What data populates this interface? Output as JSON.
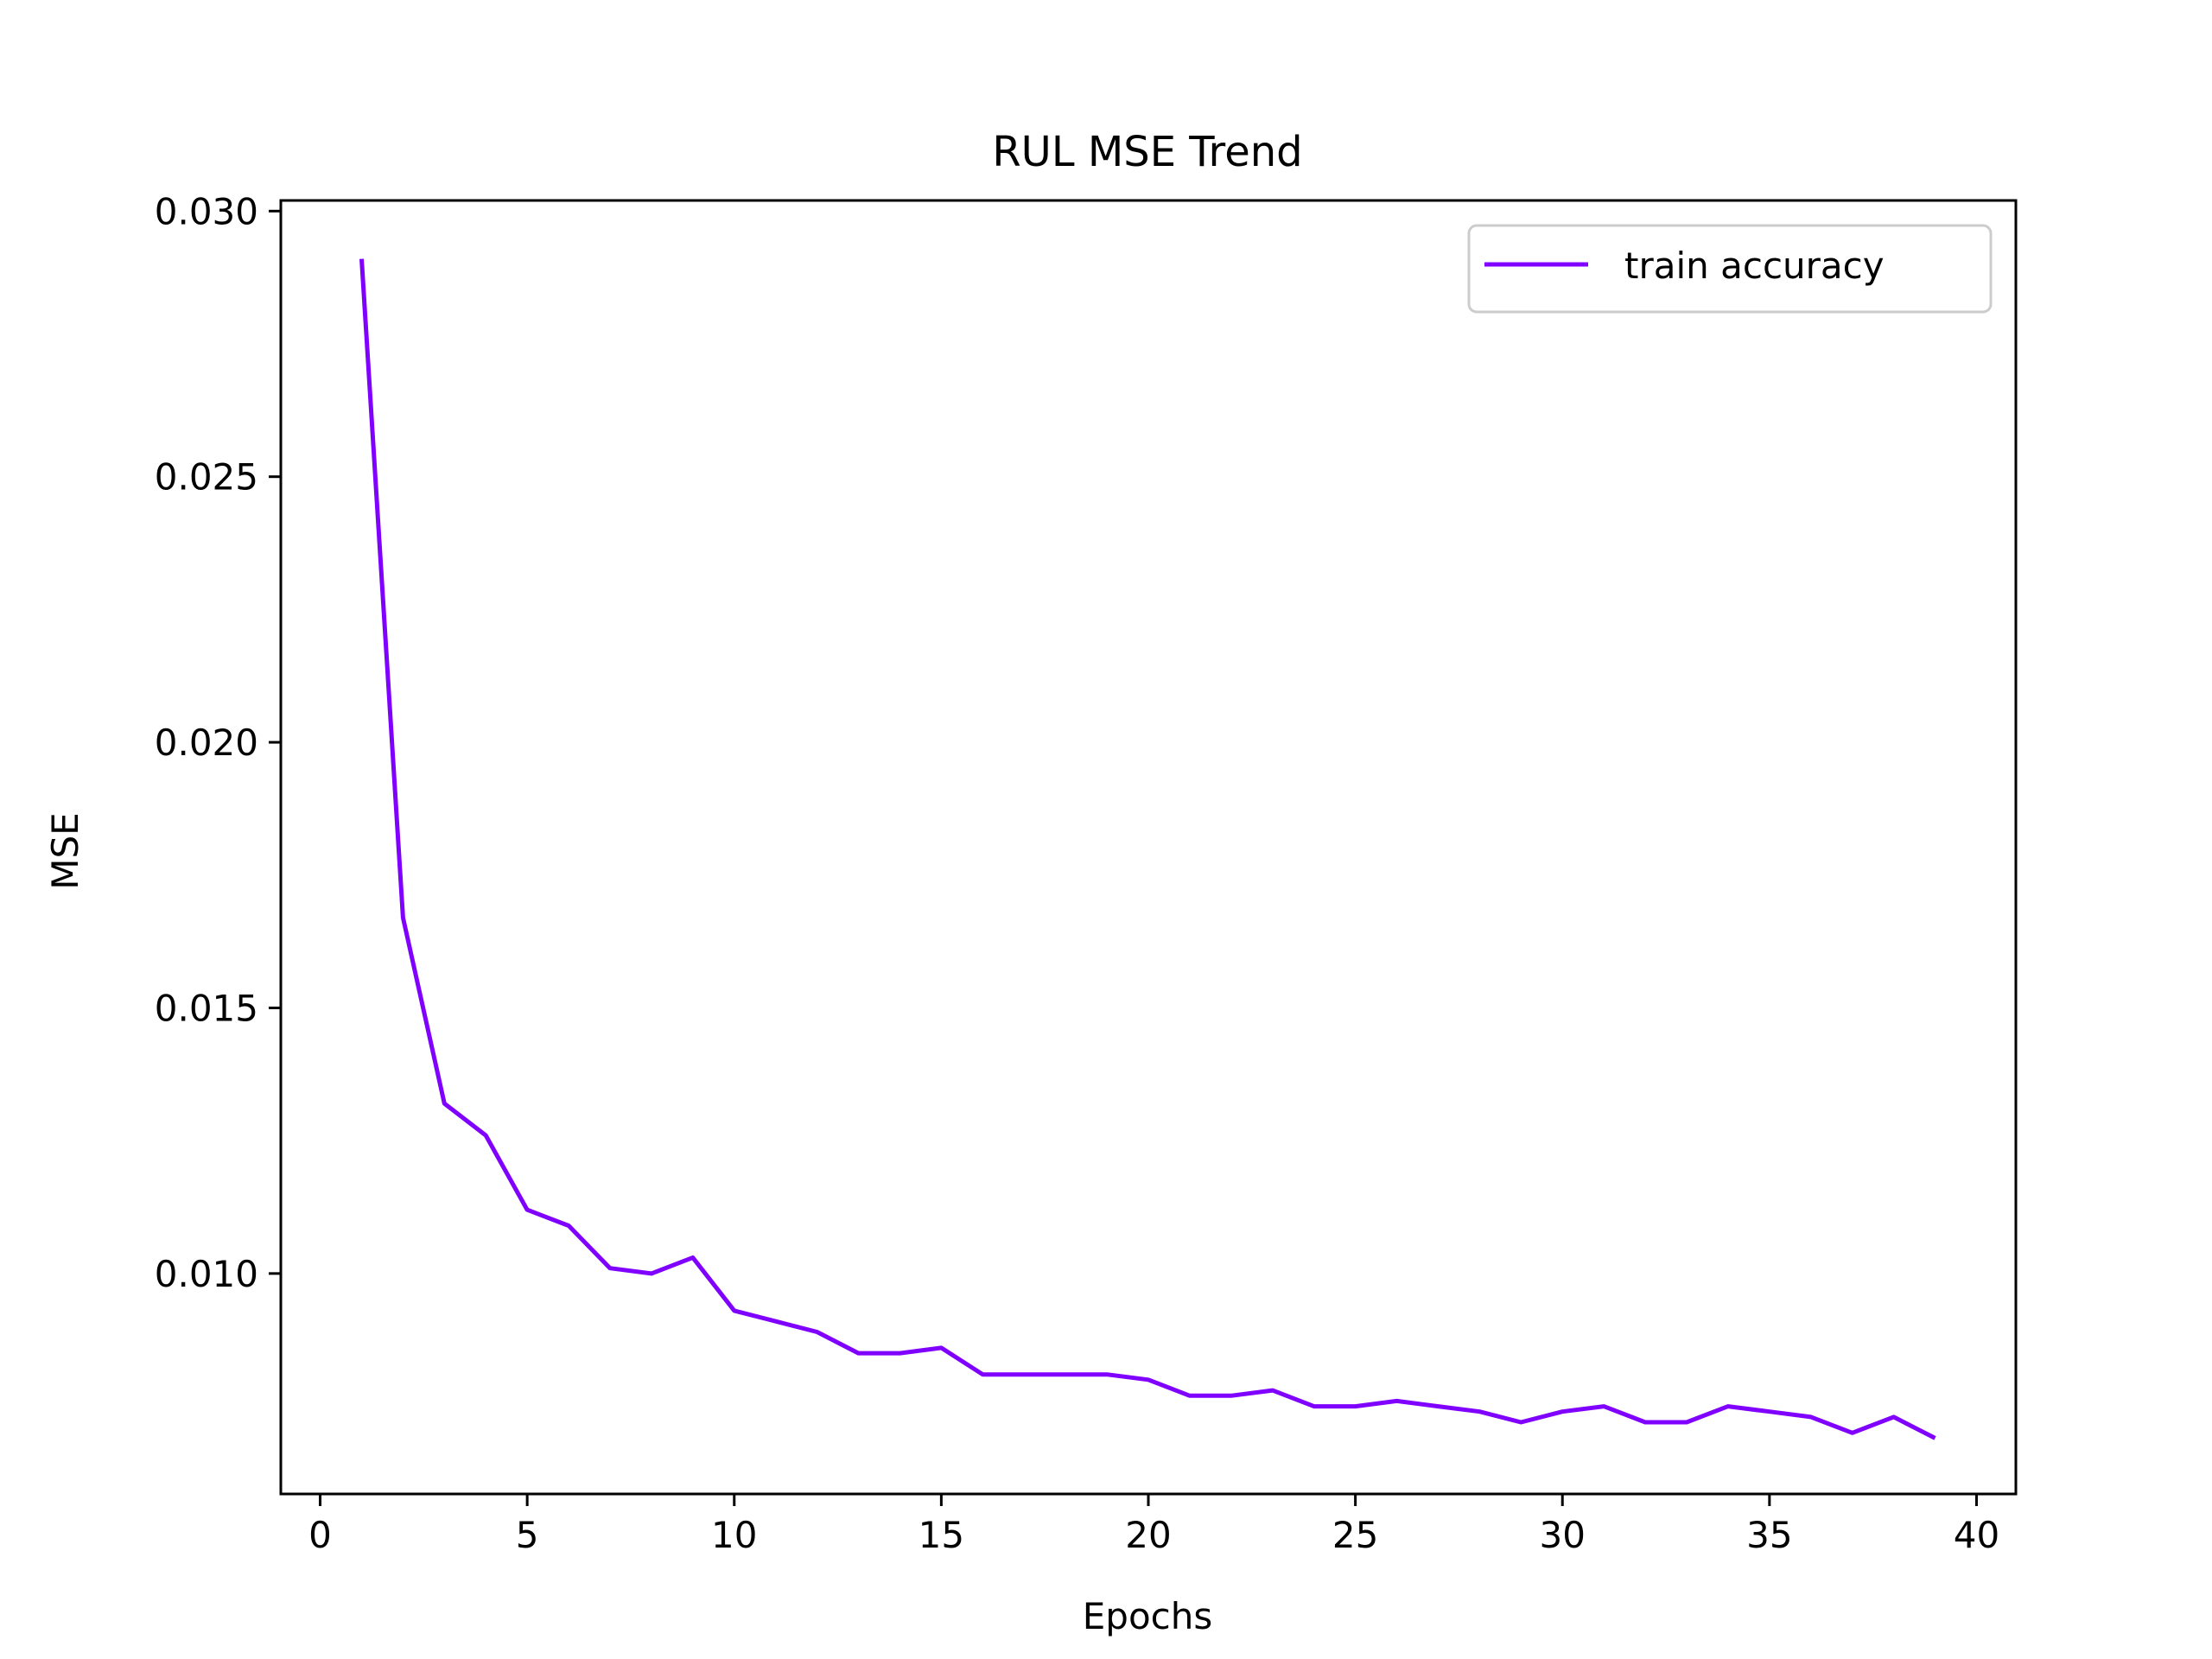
{
  "chart_data": {
    "type": "line",
    "title": "RUL MSE Trend",
    "xlabel": "Epochs",
    "ylabel": "MSE",
    "xlim": [
      -0.95,
      40.95
    ],
    "ylim": [
      0.00585,
      0.0302
    ],
    "xticks": [
      0,
      5,
      10,
      15,
      20,
      25,
      30,
      35,
      40
    ],
    "xtick_labels": [
      "0",
      "5",
      "10",
      "15",
      "20",
      "25",
      "30",
      "35",
      "40"
    ],
    "yticks": [
      0.01,
      0.015,
      0.02,
      0.025,
      0.03
    ],
    "ytick_labels": [
      "0.010",
      "0.015",
      "0.020",
      "0.025",
      "0.030"
    ],
    "grid": false,
    "legend_position": "top-right",
    "series": [
      {
        "name": "train accuracy",
        "color": "#8000ff",
        "x": [
          1,
          2,
          3,
          4,
          5,
          6,
          7,
          8,
          9,
          10,
          11,
          12,
          13,
          14,
          15,
          16,
          17,
          18,
          19,
          20,
          21,
          22,
          23,
          24,
          25,
          26,
          27,
          28,
          29,
          30,
          31,
          32,
          33,
          34,
          35,
          36,
          37,
          38,
          39
        ],
        "y": [
          0.0291,
          0.0167,
          0.0132,
          0.0126,
          0.0112,
          0.0109,
          0.0101,
          0.01,
          0.0103,
          0.0093,
          0.0091,
          0.0089,
          0.0085,
          0.0085,
          0.0086,
          0.0081,
          0.0081,
          0.0081,
          0.0081,
          0.008,
          0.0077,
          0.0077,
          0.0078,
          0.0075,
          0.0075,
          0.0076,
          0.0075,
          0.0074,
          0.0072,
          0.0074,
          0.0075,
          0.0072,
          0.0072,
          0.0075,
          0.0074,
          0.0073,
          0.007,
          0.0073,
          0.0069
        ]
      }
    ]
  }
}
